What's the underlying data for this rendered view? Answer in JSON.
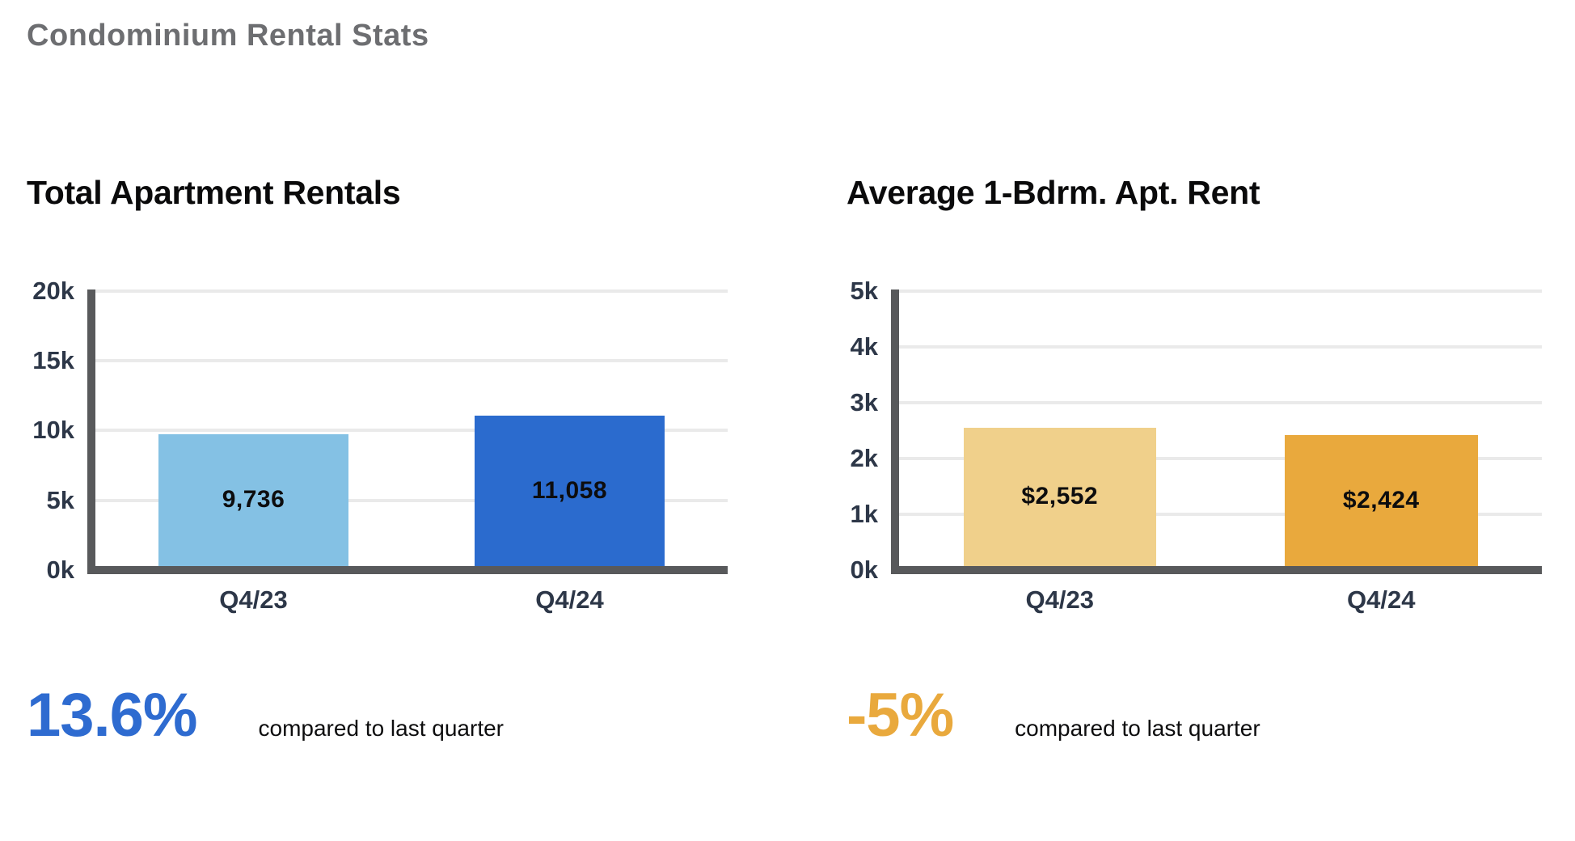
{
  "page": {
    "title": "Condominium Rental Stats"
  },
  "chart_data": [
    {
      "type": "bar",
      "title": "Total Apartment Rentals",
      "categories": [
        "Q4/23",
        "Q4/24"
      ],
      "values": [
        9736,
        11058
      ],
      "value_labels": [
        "9,736",
        "11,058"
      ],
      "bar_colors": [
        "#84C1E4",
        "#2B6BCE"
      ],
      "ylim": [
        0,
        20000
      ],
      "yticks": {
        "labels": [
          "20k",
          "15k",
          "10k",
          "5k",
          "0k"
        ],
        "values": [
          20000,
          15000,
          10000,
          5000,
          0
        ]
      },
      "grid": true,
      "legend": "none",
      "axis_color": "#58595B",
      "gridline_color": "#EAEAEA",
      "tick_label_color": "#2D3748",
      "stat": {
        "value": "13.6%",
        "caption": "compared to last quarter",
        "color": "#2E6BD0"
      }
    },
    {
      "type": "bar",
      "title": "Average 1-Bdrm. Apt. Rent",
      "categories": [
        "Q4/23",
        "Q4/24"
      ],
      "values": [
        2552,
        2424
      ],
      "value_labels": [
        "$2,552",
        "$2,424"
      ],
      "bar_colors": [
        "#F0D08B",
        "#E9A93D"
      ],
      "ylim": [
        0,
        5000
      ],
      "yticks": {
        "labels": [
          "5k",
          "4k",
          "3k",
          "2k",
          "1k",
          "0k"
        ],
        "values": [
          5000,
          4000,
          3000,
          2000,
          1000,
          0
        ]
      },
      "grid": true,
      "legend": "none",
      "axis_color": "#58595B",
      "gridline_color": "#EAEAEA",
      "tick_label_color": "#2D3748",
      "stat": {
        "value": "-5%",
        "caption": "compared to last quarter",
        "color": "#E9A93D"
      }
    }
  ]
}
